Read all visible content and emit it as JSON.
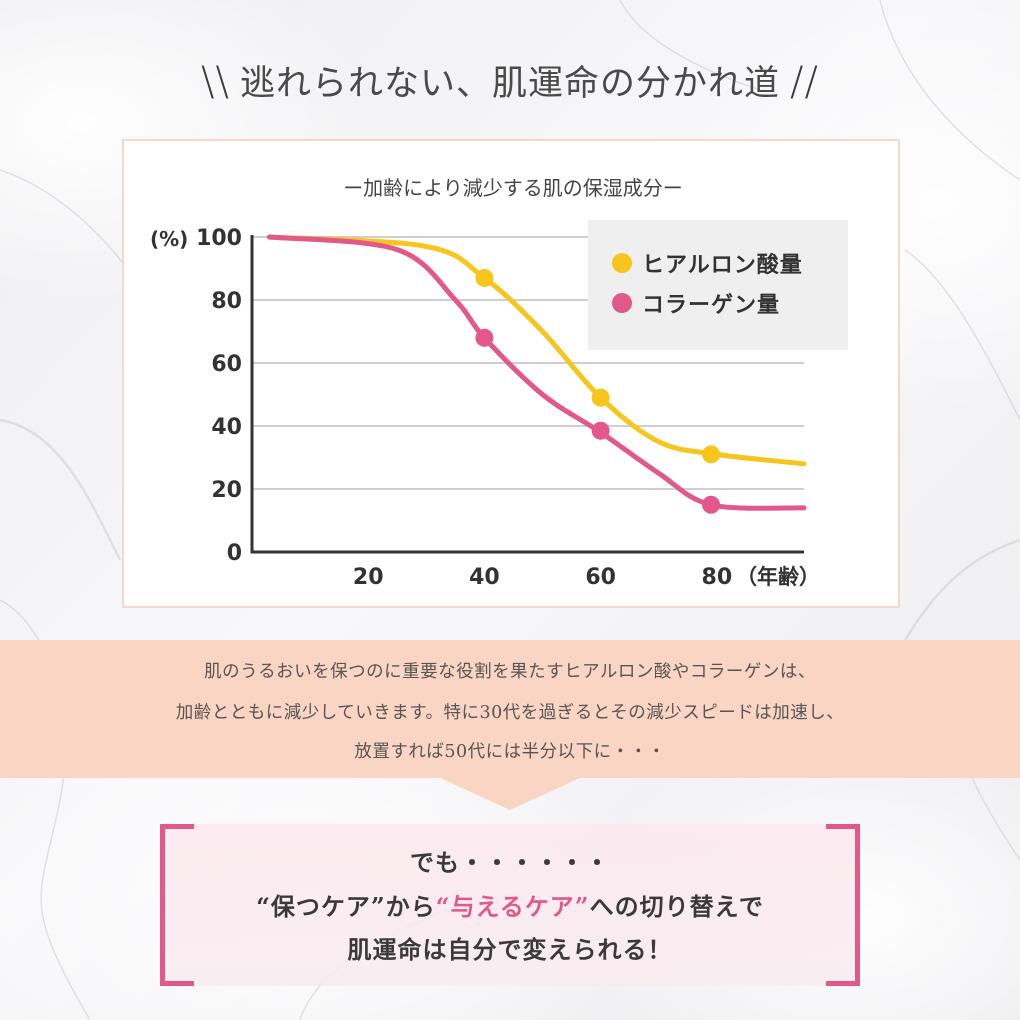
{
  "page": {
    "heading": "逃れられない、肌運命の分かれ道",
    "heading_deco_left": "\\\\",
    "heading_deco_right": "//"
  },
  "chart_data": {
    "type": "line",
    "title": "ー加齢により減少する肌の保湿成分ー",
    "ylabel": "(%)",
    "xlabel": "（年齢）",
    "ylim": [
      0,
      100
    ],
    "xlim": [
      0,
      95
    ],
    "yticks": [
      "0",
      "20",
      "40",
      "60",
      "80",
      "100"
    ],
    "xticks": [
      "20",
      "40",
      "60",
      "80"
    ],
    "grid": true,
    "legend": "top-right",
    "series": [
      {
        "name": "ヒアルロン酸量",
        "color": "#f7c51c",
        "points": [
          [
            3,
            100
          ],
          [
            30,
            97
          ],
          [
            40,
            87
          ],
          [
            50,
            70
          ],
          [
            60,
            49
          ],
          [
            70,
            35
          ],
          [
            80,
            31
          ],
          [
            95,
            28
          ]
        ],
        "markers": [
          [
            40,
            87
          ],
          [
            60,
            49
          ],
          [
            79,
            31
          ]
        ]
      },
      {
        "name": "コラーゲン量",
        "color": "#e2588a",
        "points": [
          [
            3,
            100
          ],
          [
            25,
            96
          ],
          [
            35,
            80
          ],
          [
            40,
            68
          ],
          [
            50,
            50
          ],
          [
            60,
            38
          ],
          [
            70,
            25
          ],
          [
            79,
            15
          ],
          [
            95,
            14
          ]
        ],
        "markers": [
          [
            40,
            68
          ],
          [
            60,
            38.5
          ],
          [
            79,
            15
          ]
        ]
      }
    ]
  },
  "info": {
    "lines": [
      "肌のうるおいを保つのに重要な役割を果たすヒアルロン酸やコラーゲンは、",
      "加齢とともに減少していきます。特に30代を過ぎるとその減少スピードは加速し、",
      "放置すれば50代には半分以下に・・・"
    ]
  },
  "callout": {
    "line1": "でも・・・・・・",
    "line2_a": "“保つケア”から",
    "line2_b": "“与えるケア”",
    "line2_c": "への切り替えで",
    "line3": "肌運命は自分で変えられる！"
  },
  "colors": {
    "accent_pink": "#e2588a",
    "accent_yellow": "#f7c51c",
    "band_peach": "#fbd5c4"
  }
}
